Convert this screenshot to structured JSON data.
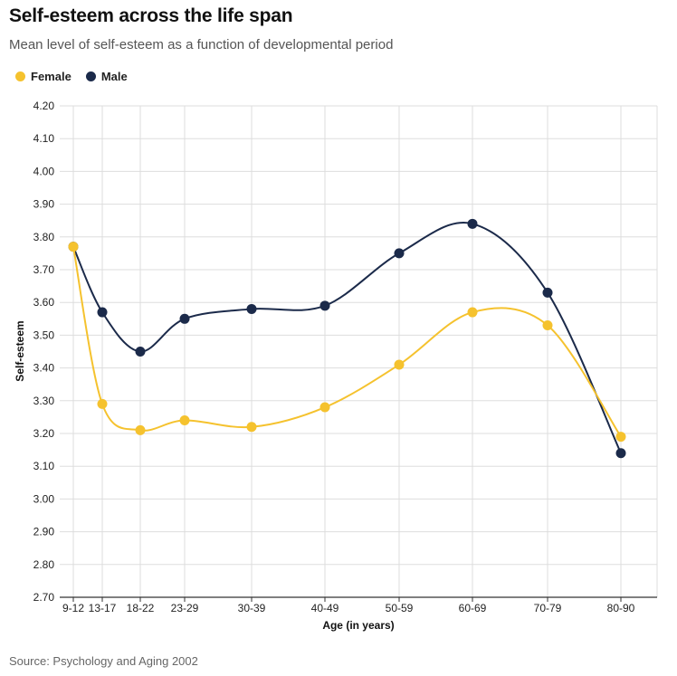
{
  "header": {
    "title": "Self-esteem across the life span",
    "subtitle": "Mean level of self-esteem as a function of developmental period"
  },
  "footer": {
    "source": "Source: Psychology and Aging 2002"
  },
  "colors": {
    "female": "#f5c22e",
    "male": "#1b2a4a",
    "grid": "#dddddd",
    "axis": "#333333"
  },
  "chart_data": {
    "type": "line",
    "title": "Self-esteem across the life span",
    "subtitle": "Mean level of self-esteem as a function of developmental period",
    "xlabel": "Age (in years)",
    "ylabel": "Self-esteem",
    "categories": [
      "9-12",
      "13-17",
      "18-22",
      "23-29",
      "30-39",
      "40-49",
      "50-59",
      "60-69",
      "70-79",
      "80-90"
    ],
    "ylim": [
      2.7,
      4.2
    ],
    "yticks": [
      "2.70",
      "2.80",
      "2.90",
      "3.00",
      "3.10",
      "3.20",
      "3.30",
      "3.40",
      "3.50",
      "3.60",
      "3.70",
      "3.80",
      "3.90",
      "4.00",
      "4.10",
      "4.20"
    ],
    "grid": true,
    "legend_position": "top-left",
    "series": [
      {
        "name": "Female",
        "values": [
          3.77,
          3.29,
          3.21,
          3.24,
          3.22,
          3.28,
          3.41,
          3.57,
          3.53,
          3.19
        ]
      },
      {
        "name": "Male",
        "values": [
          3.77,
          3.57,
          3.45,
          3.55,
          3.58,
          3.59,
          3.75,
          3.84,
          3.63,
          3.14
        ]
      }
    ]
  }
}
